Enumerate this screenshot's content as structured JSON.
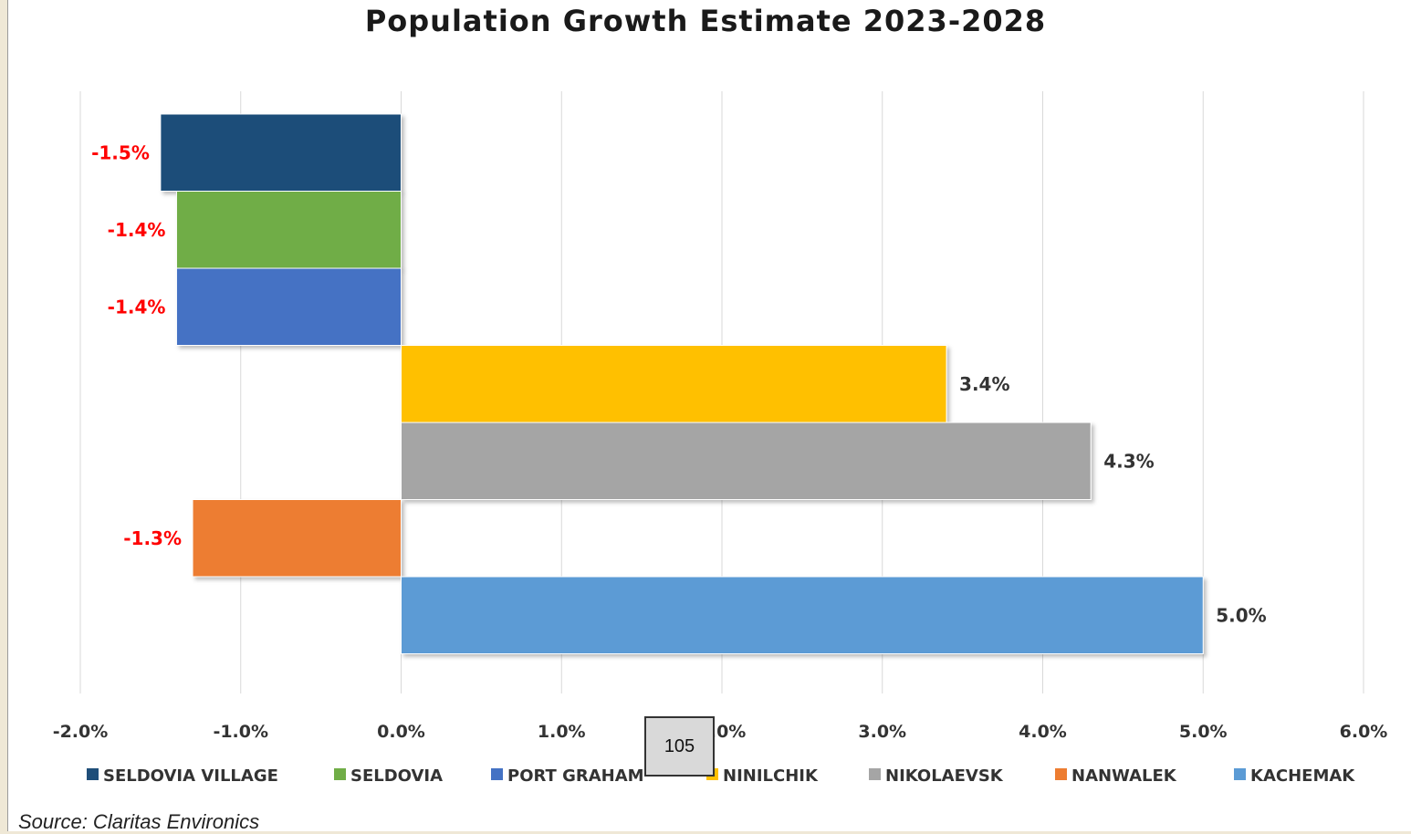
{
  "source_note": "Source: Claritas Environics",
  "page_number": "105",
  "chart_data": {
    "type": "bar",
    "orientation": "horizontal",
    "title": "Population Growth Estimate 2023-2028",
    "xlabel": "",
    "ylabel": "",
    "xlim": [
      -2.0,
      6.0
    ],
    "tick_labels": [
      "-2.0%",
      "-1.0%",
      "0.0%",
      "1.0%",
      "2.0%",
      "3.0%",
      "4.0%",
      "5.0%",
      "6.0%"
    ],
    "grid": true,
    "legend_position": "bottom",
    "series": [
      {
        "name": "SELDOVIA VILLAGE",
        "value": -1.5,
        "label": "-1.5%",
        "color": "#1f4e79"
      },
      {
        "name": "SELDOVIA",
        "value": -1.4,
        "label": "-1.4%",
        "color": "#70ad47"
      },
      {
        "name": "PORT GRAHAM",
        "value": -1.4,
        "label": "-1.4%",
        "color": "#4472c4"
      },
      {
        "name": "NINILCHIK",
        "value": 3.4,
        "label": "3.4%",
        "color": "#ffc000"
      },
      {
        "name": "NIKOLAEVSK",
        "value": 4.3,
        "label": "4.3%",
        "color": "#a5a5a5"
      },
      {
        "name": "NANWALEK",
        "value": -1.3,
        "label": "-1.3%",
        "color": "#ed7d31"
      },
      {
        "name": "KACHEMAK",
        "value": 5.0,
        "label": "5.0%",
        "color": "#5b9bd5"
      }
    ],
    "negative_label_color": "#ff0000",
    "positive_label_color": "#333333"
  }
}
